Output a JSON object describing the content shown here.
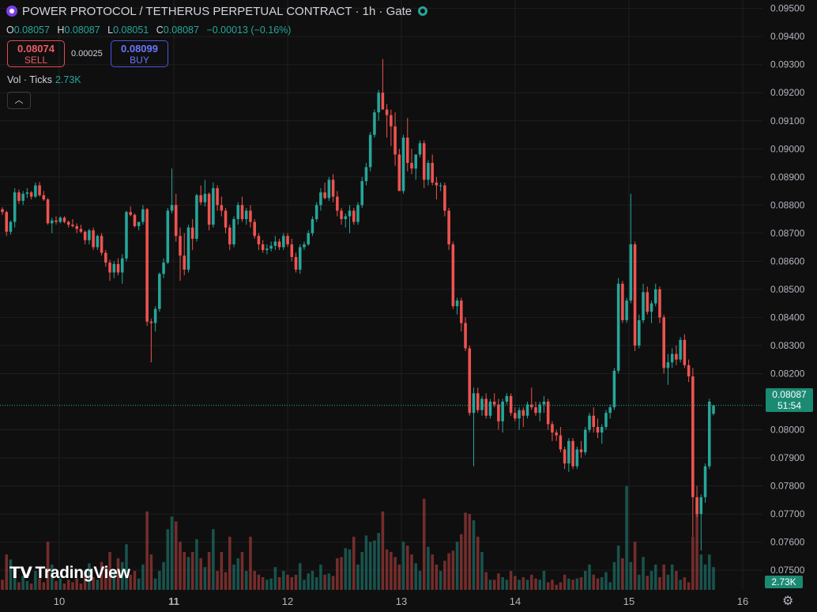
{
  "header": {
    "title": "POWER PROTOCOL / TETHERUS PERPETUAL CONTRACT · 1h · Gate",
    "ohlc": {
      "o_label": "O",
      "o": "0.08057",
      "h_label": "H",
      "h": "0.08087",
      "l_label": "L",
      "l": "0.08051",
      "c_label": "C",
      "c": "0.08087",
      "change": "−0.00013 (−0.16%)"
    },
    "sell_price": "0.08074",
    "sell_label": "SELL",
    "spread": "0.00025",
    "buy_price": "0.08099",
    "buy_label": "BUY",
    "volume_label": "Vol · Ticks",
    "volume_value": "2.73K",
    "collapse_icon": "chevron-up-icon"
  },
  "price_tag": {
    "price": "0.08087",
    "countdown": "51:54"
  },
  "volume_tag": "2.73K",
  "branding": "TradingView",
  "colors": {
    "up": "#26a69a",
    "down": "#ef5350",
    "background": "#0f0f0f",
    "grid": "#1f1f1f"
  },
  "chart_data": {
    "type": "candlestick",
    "timeframe": "1h",
    "y_axis": {
      "ticks": [
        "0.09500",
        "0.09400",
        "0.09300",
        "0.09200",
        "0.09100",
        "0.09000",
        "0.08900",
        "0.08800",
        "0.08700",
        "0.08600",
        "0.08500",
        "0.08400",
        "0.08300",
        "0.08200",
        "0.08000",
        "0.07900",
        "0.07800",
        "0.07700",
        "0.07600",
        "0.07500"
      ],
      "range": [
        0.0743,
        0.0953
      ],
      "volume_tick_visible": "0"
    },
    "x_axis": {
      "ticks": [
        "10",
        "11",
        "12",
        "13",
        "14",
        "15",
        "16"
      ],
      "bold_ticks": [
        "11"
      ]
    },
    "last_price": 0.08087,
    "volume_scale_max": 1000,
    "candles": [
      [
        0.08785,
        0.08792,
        0.08765,
        0.08775,
        80
      ],
      [
        0.08775,
        0.0878,
        0.0869,
        0.08705,
        280
      ],
      [
        0.08705,
        0.08745,
        0.08695,
        0.0874,
        240
      ],
      [
        0.0874,
        0.0886,
        0.0872,
        0.08845,
        160
      ],
      [
        0.08845,
        0.08855,
        0.08805,
        0.08815,
        60
      ],
      [
        0.08815,
        0.0885,
        0.088,
        0.0884,
        110
      ],
      [
        0.0884,
        0.0886,
        0.08825,
        0.08845,
        70
      ],
      [
        0.08845,
        0.0885,
        0.0882,
        0.0883,
        50
      ],
      [
        0.0883,
        0.0888,
        0.08825,
        0.0887,
        150
      ],
      [
        0.0887,
        0.08882,
        0.0883,
        0.08835,
        90
      ],
      [
        0.08835,
        0.0885,
        0.08815,
        0.0882,
        60
      ],
      [
        0.0882,
        0.08825,
        0.0873,
        0.08735,
        380
      ],
      [
        0.08735,
        0.08755,
        0.087,
        0.08745,
        200
      ],
      [
        0.08745,
        0.0876,
        0.0873,
        0.0874,
        70
      ],
      [
        0.0874,
        0.0876,
        0.08735,
        0.08755,
        90
      ],
      [
        0.08755,
        0.0876,
        0.08735,
        0.0874,
        50
      ],
      [
        0.0874,
        0.08745,
        0.0872,
        0.0873,
        80
      ],
      [
        0.0873,
        0.0875,
        0.0872,
        0.08725,
        60
      ],
      [
        0.08725,
        0.08735,
        0.087,
        0.08715,
        90
      ],
      [
        0.08715,
        0.0873,
        0.087,
        0.08705,
        50
      ],
      [
        0.08705,
        0.0871,
        0.0866,
        0.08675,
        140
      ],
      [
        0.08675,
        0.08715,
        0.0866,
        0.0871,
        210
      ],
      [
        0.0871,
        0.0872,
        0.0864,
        0.0865,
        100
      ],
      [
        0.0865,
        0.08695,
        0.0864,
        0.0869,
        80
      ],
      [
        0.0869,
        0.087,
        0.0862,
        0.0863,
        220
      ],
      [
        0.0863,
        0.0864,
        0.0858,
        0.08595,
        180
      ],
      [
        0.08595,
        0.08605,
        0.0853,
        0.0856,
        300
      ],
      [
        0.0856,
        0.086,
        0.0854,
        0.0859,
        160
      ],
      [
        0.0859,
        0.0861,
        0.0855,
        0.0856,
        250
      ],
      [
        0.0856,
        0.08625,
        0.0852,
        0.0861,
        220
      ],
      [
        0.0861,
        0.0878,
        0.086,
        0.08775,
        360
      ],
      [
        0.08775,
        0.08795,
        0.0876,
        0.08765,
        120
      ],
      [
        0.08765,
        0.0877,
        0.0872,
        0.08725,
        150
      ],
      [
        0.08725,
        0.0874,
        0.0871,
        0.0874,
        90
      ],
      [
        0.0874,
        0.088,
        0.0873,
        0.08785,
        200
      ],
      [
        0.08785,
        0.0879,
        0.0837,
        0.08385,
        620
      ],
      [
        0.08385,
        0.08395,
        0.0824,
        0.0838,
        280
      ],
      [
        0.0838,
        0.0844,
        0.0835,
        0.0843,
        90
      ],
      [
        0.0843,
        0.0856,
        0.0842,
        0.08555,
        150
      ],
      [
        0.08555,
        0.0861,
        0.0854,
        0.08595,
        220
      ],
      [
        0.08595,
        0.0879,
        0.0859,
        0.0878,
        480
      ],
      [
        0.0878,
        0.0893,
        0.0877,
        0.088,
        580
      ],
      [
        0.088,
        0.0884,
        0.0867,
        0.0869,
        540
      ],
      [
        0.0869,
        0.0872,
        0.0853,
        0.0862,
        380
      ],
      [
        0.0862,
        0.087,
        0.0855,
        0.0857,
        300
      ],
      [
        0.0857,
        0.0873,
        0.0856,
        0.0872,
        260
      ],
      [
        0.0872,
        0.0875,
        0.0864,
        0.0868,
        300
      ],
      [
        0.0868,
        0.0884,
        0.0867,
        0.08835,
        400
      ],
      [
        0.08835,
        0.0887,
        0.088,
        0.0881,
        250
      ],
      [
        0.0881,
        0.0889,
        0.08795,
        0.0884,
        180
      ],
      [
        0.0884,
        0.08845,
        0.0871,
        0.0873,
        300
      ],
      [
        0.0873,
        0.0888,
        0.0872,
        0.0886,
        480
      ],
      [
        0.0886,
        0.0887,
        0.0878,
        0.088,
        150
      ],
      [
        0.088,
        0.0883,
        0.0876,
        0.0878,
        300
      ],
      [
        0.0878,
        0.0879,
        0.087,
        0.0872,
        140
      ],
      [
        0.0872,
        0.0873,
        0.0864,
        0.0866,
        420
      ],
      [
        0.0866,
        0.0876,
        0.0865,
        0.0875,
        200
      ],
      [
        0.0875,
        0.0881,
        0.0873,
        0.088,
        250
      ],
      [
        0.088,
        0.0883,
        0.0874,
        0.0875,
        300
      ],
      [
        0.0875,
        0.0879,
        0.0873,
        0.0878,
        150
      ],
      [
        0.0878,
        0.088,
        0.0872,
        0.0874,
        420
      ],
      [
        0.0874,
        0.0875,
        0.0868,
        0.0869,
        150
      ],
      [
        0.0869,
        0.087,
        0.0864,
        0.0866,
        120
      ],
      [
        0.0866,
        0.08675,
        0.0863,
        0.0864,
        100
      ],
      [
        0.0864,
        0.0866,
        0.08625,
        0.08645,
        80
      ],
      [
        0.08645,
        0.0867,
        0.08635,
        0.08655,
        90
      ],
      [
        0.08655,
        0.0869,
        0.0864,
        0.0867,
        180
      ],
      [
        0.0867,
        0.0868,
        0.0864,
        0.0865,
        100
      ],
      [
        0.0865,
        0.087,
        0.0864,
        0.0869,
        150
      ],
      [
        0.0869,
        0.087,
        0.0865,
        0.0866,
        120
      ],
      [
        0.0866,
        0.0868,
        0.086,
        0.08615,
        100
      ],
      [
        0.08615,
        0.0863,
        0.0856,
        0.0857,
        120
      ],
      [
        0.0857,
        0.0866,
        0.08555,
        0.0865,
        210
      ],
      [
        0.0865,
        0.0867,
        0.0864,
        0.0866,
        80
      ],
      [
        0.0866,
        0.0871,
        0.08655,
        0.087,
        130
      ],
      [
        0.087,
        0.0876,
        0.0869,
        0.0875,
        150
      ],
      [
        0.0875,
        0.0881,
        0.0874,
        0.088,
        100
      ],
      [
        0.088,
        0.0886,
        0.0878,
        0.08845,
        200
      ],
      [
        0.08845,
        0.0888,
        0.0882,
        0.08825,
        120
      ],
      [
        0.08825,
        0.089,
        0.08815,
        0.0889,
        130
      ],
      [
        0.0889,
        0.0891,
        0.0881,
        0.0883,
        110
      ],
      [
        0.0883,
        0.0885,
        0.0876,
        0.0878,
        250
      ],
      [
        0.0878,
        0.0879,
        0.0873,
        0.0875,
        260
      ],
      [
        0.0875,
        0.0877,
        0.0872,
        0.0876,
        330
      ],
      [
        0.0876,
        0.088,
        0.087,
        0.0878,
        320
      ],
      [
        0.0878,
        0.0879,
        0.0873,
        0.0874,
        420
      ],
      [
        0.0874,
        0.0881,
        0.0873,
        0.088,
        200
      ],
      [
        0.088,
        0.089,
        0.0879,
        0.08885,
        300
      ],
      [
        0.08885,
        0.0895,
        0.0887,
        0.08935,
        430
      ],
      [
        0.08935,
        0.0906,
        0.0892,
        0.0905,
        380
      ],
      [
        0.0905,
        0.0914,
        0.0904,
        0.0913,
        390
      ],
      [
        0.0913,
        0.0921,
        0.091,
        0.092,
        450
      ],
      [
        0.092,
        0.0932,
        0.0914,
        0.0914,
        620
      ],
      [
        0.0914,
        0.0916,
        0.0904,
        0.0912,
        320
      ],
      [
        0.0912,
        0.0914,
        0.0901,
        0.0908,
        300
      ],
      [
        0.0908,
        0.0913,
        0.0894,
        0.0898,
        260
      ],
      [
        0.0898,
        0.09,
        0.0885,
        0.0885,
        200
      ],
      [
        0.0885,
        0.0905,
        0.0884,
        0.0904,
        380
      ],
      [
        0.0904,
        0.0911,
        0.0892,
        0.0895,
        350
      ],
      [
        0.0895,
        0.09,
        0.0891,
        0.0893,
        280
      ],
      [
        0.0893,
        0.0898,
        0.0889,
        0.0898,
        210
      ],
      [
        0.0898,
        0.0903,
        0.0897,
        0.0902,
        150
      ],
      [
        0.0902,
        0.0903,
        0.0886,
        0.0889,
        720
      ],
      [
        0.0889,
        0.0896,
        0.0887,
        0.0895,
        340
      ],
      [
        0.0895,
        0.0898,
        0.0887,
        0.0888,
        280
      ],
      [
        0.0888,
        0.089,
        0.0882,
        0.0887,
        200
      ],
      [
        0.0887,
        0.0888,
        0.0885,
        0.0887,
        150
      ],
      [
        0.0887,
        0.0888,
        0.0876,
        0.0878,
        230
      ],
      [
        0.0878,
        0.0879,
        0.0864,
        0.0866,
        290
      ],
      [
        0.0866,
        0.0867,
        0.0843,
        0.0844,
        310
      ],
      [
        0.0844,
        0.0847,
        0.0841,
        0.0846,
        380
      ],
      [
        0.0846,
        0.0847,
        0.0835,
        0.0838,
        440
      ],
      [
        0.0838,
        0.084,
        0.0828,
        0.0829,
        610
      ],
      [
        0.0829,
        0.083,
        0.0805,
        0.0806,
        600
      ],
      [
        0.0806,
        0.0815,
        0.0787,
        0.0813,
        550
      ],
      [
        0.0813,
        0.0815,
        0.0806,
        0.0807,
        420
      ],
      [
        0.0807,
        0.0812,
        0.0805,
        0.0811,
        300
      ],
      [
        0.0811,
        0.0813,
        0.0804,
        0.0805,
        140
      ],
      [
        0.0805,
        0.0811,
        0.0804,
        0.081,
        80
      ],
      [
        0.081,
        0.0813,
        0.0808,
        0.0809,
        80
      ],
      [
        0.0809,
        0.0811,
        0.08,
        0.0803,
        130
      ],
      [
        0.0803,
        0.0811,
        0.0799,
        0.081,
        100
      ],
      [
        0.081,
        0.0813,
        0.0809,
        0.0812,
        80
      ],
      [
        0.0812,
        0.0813,
        0.0805,
        0.0806,
        150
      ],
      [
        0.0806,
        0.0808,
        0.0803,
        0.0804,
        110
      ],
      [
        0.0804,
        0.0808,
        0.08,
        0.0807,
        80
      ],
      [
        0.0807,
        0.0808,
        0.0801,
        0.0805,
        100
      ],
      [
        0.0805,
        0.081,
        0.0804,
        0.0809,
        80
      ],
      [
        0.0809,
        0.0815,
        0.0807,
        0.0808,
        120
      ],
      [
        0.0808,
        0.081,
        0.0805,
        0.0806,
        90
      ],
      [
        0.0806,
        0.081,
        0.0803,
        0.0809,
        80
      ],
      [
        0.0809,
        0.0812,
        0.0806,
        0.081,
        150
      ],
      [
        0.081,
        0.0811,
        0.08,
        0.0802,
        60
      ],
      [
        0.0802,
        0.0803,
        0.0796,
        0.0799,
        80
      ],
      [
        0.0799,
        0.08,
        0.0796,
        0.0798,
        40
      ],
      [
        0.0798,
        0.0801,
        0.0792,
        0.0793,
        60
      ],
      [
        0.0793,
        0.0794,
        0.0786,
        0.0788,
        120
      ],
      [
        0.0788,
        0.0797,
        0.0785,
        0.0796,
        90
      ],
      [
        0.0796,
        0.0797,
        0.0786,
        0.0787,
        80
      ],
      [
        0.0787,
        0.0794,
        0.0786,
        0.0793,
        90
      ],
      [
        0.0793,
        0.0796,
        0.079,
        0.0792,
        100
      ],
      [
        0.0792,
        0.0801,
        0.0791,
        0.08,
        150
      ],
      [
        0.08,
        0.0806,
        0.0799,
        0.0805,
        200
      ],
      [
        0.0805,
        0.0808,
        0.0799,
        0.0801,
        120
      ],
      [
        0.0801,
        0.0804,
        0.0797,
        0.0799,
        90
      ],
      [
        0.0799,
        0.0802,
        0.0795,
        0.0801,
        100
      ],
      [
        0.0801,
        0.0807,
        0.08,
        0.0806,
        140
      ],
      [
        0.0806,
        0.0809,
        0.0804,
        0.0808,
        60
      ],
      [
        0.0808,
        0.0822,
        0.0807,
        0.0821,
        220
      ],
      [
        0.0821,
        0.0854,
        0.082,
        0.0852,
        350
      ],
      [
        0.0852,
        0.0853,
        0.0838,
        0.0839,
        250
      ],
      [
        0.0839,
        0.0847,
        0.0838,
        0.0846,
        820
      ],
      [
        0.0846,
        0.0884,
        0.0845,
        0.0866,
        220
      ],
      [
        0.0866,
        0.0867,
        0.0828,
        0.083,
        380
      ],
      [
        0.083,
        0.0841,
        0.0829,
        0.0839,
        120
      ],
      [
        0.0839,
        0.0852,
        0.0838,
        0.0849,
        260
      ],
      [
        0.0849,
        0.0851,
        0.0841,
        0.0842,
        110
      ],
      [
        0.0842,
        0.0846,
        0.0838,
        0.0845,
        150
      ],
      [
        0.0845,
        0.0852,
        0.0844,
        0.085,
        200
      ],
      [
        0.085,
        0.0851,
        0.0838,
        0.084,
        100
      ],
      [
        0.084,
        0.0841,
        0.082,
        0.0822,
        200
      ],
      [
        0.0822,
        0.0827,
        0.0816,
        0.0824,
        120
      ],
      [
        0.0824,
        0.0829,
        0.0822,
        0.0827,
        200
      ],
      [
        0.0827,
        0.083,
        0.0823,
        0.0825,
        150
      ],
      [
        0.0825,
        0.0833,
        0.0824,
        0.0832,
        80
      ],
      [
        0.0832,
        0.0834,
        0.0822,
        0.0823,
        100
      ],
      [
        0.0823,
        0.0825,
        0.0817,
        0.0819,
        60
      ],
      [
        0.0819,
        0.0822,
        0.0762,
        0.0776,
        420
      ],
      [
        0.0776,
        0.078,
        0.0769,
        0.077,
        650
      ],
      [
        0.077,
        0.0777,
        0.0757,
        0.0776,
        280
      ],
      [
        0.0776,
        0.0788,
        0.0774,
        0.0787,
        200
      ],
      [
        0.0787,
        0.0811,
        0.0786,
        0.081,
        280
      ],
      [
        0.08057,
        0.08087,
        0.08051,
        0.08087,
        180
      ]
    ]
  }
}
